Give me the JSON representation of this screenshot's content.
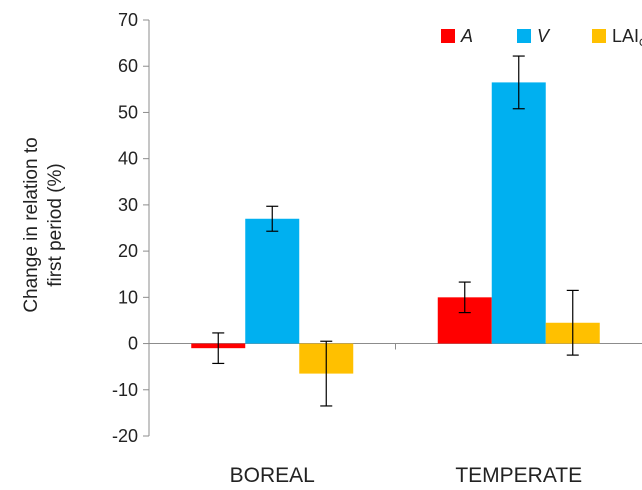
{
  "chart_data": {
    "type": "bar",
    "categories": [
      "BOREAL",
      "TEMPERATE"
    ],
    "series": [
      {
        "name": "A",
        "name_italic": true,
        "color": "#ff0000",
        "values": [
          -1,
          10
        ],
        "error": [
          3.3,
          3.3
        ]
      },
      {
        "name": "V",
        "name_italic": true,
        "color": "#00b0f0",
        "values": [
          27,
          56.5
        ],
        "error": [
          2.7,
          5.7
        ]
      },
      {
        "name": "LAI",
        "name_subscript": "Q",
        "color": "#ffc000",
        "values": [
          -6.5,
          4.5
        ],
        "error": [
          7,
          7
        ]
      }
    ],
    "ylabel_lines": [
      "Change in relation to",
      "first  period (%)"
    ],
    "ylim": [
      -20,
      70
    ],
    "yticks": [
      -20,
      -10,
      0,
      10,
      20,
      30,
      40,
      50,
      60,
      70
    ],
    "grid": false,
    "legend_position": "top-right"
  }
}
